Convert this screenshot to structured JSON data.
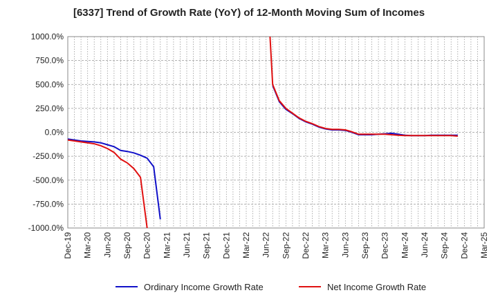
{
  "chart_data": {
    "type": "line",
    "title": "[6337]  Trend of Growth Rate (YoY) of 12-Month Moving Sum of Incomes",
    "xlabel": "",
    "ylabel": "",
    "ylim": [
      -1000,
      1000
    ],
    "y_ticks": [
      "1000.0%",
      "750.0%",
      "500.0%",
      "250.0%",
      "0.0%",
      "-250.0%",
      "-500.0%",
      "-750.0%",
      "-1000.0%"
    ],
    "y_tick_values": [
      1000,
      750,
      500,
      250,
      0,
      -250,
      -500,
      -750,
      -1000
    ],
    "x_ticks": [
      "Dec-19",
      "Mar-20",
      "Jun-20",
      "Sep-20",
      "Dec-20",
      "Mar-21",
      "Jun-21",
      "Sep-21",
      "Dec-21",
      "Mar-22",
      "Jun-22",
      "Sep-22",
      "Dec-22",
      "Mar-23",
      "Jun-23",
      "Sep-23",
      "Dec-23",
      "Mar-24",
      "Jun-24",
      "Sep-24",
      "Dec-24",
      "Mar-25"
    ],
    "grid": true,
    "legend_position": "bottom",
    "series": [
      {
        "name": "Ordinary Income Growth Rate",
        "color": "#1010c8",
        "points": [
          [
            0,
            -70
          ],
          [
            1,
            -80
          ],
          [
            2,
            -90
          ],
          [
            3,
            -95
          ],
          [
            4,
            -100
          ],
          [
            5,
            -110
          ],
          [
            6,
            -130
          ],
          [
            7,
            -150
          ],
          [
            8,
            -190
          ],
          [
            9,
            -200
          ],
          [
            10,
            -215
          ],
          [
            11,
            -240
          ],
          [
            12,
            -270
          ],
          [
            13,
            -360
          ],
          [
            14,
            -910
          ]
        ]
      },
      {
        "name": "Net Income Growth Rate",
        "color": "#e01010",
        "points": [
          [
            0,
            -80
          ],
          [
            1,
            -90
          ],
          [
            2,
            -100
          ],
          [
            3,
            -110
          ],
          [
            4,
            -120
          ],
          [
            5,
            -140
          ],
          [
            6,
            -170
          ],
          [
            7,
            -210
          ],
          [
            8,
            -280
          ],
          [
            9,
            -320
          ],
          [
            10,
            -380
          ],
          [
            11,
            -470
          ],
          [
            12,
            -1000
          ]
        ],
        "points2": [
          [
            30.6,
            1000
          ],
          [
            31,
            500
          ],
          [
            32,
            330
          ],
          [
            33,
            250
          ],
          [
            34,
            200
          ],
          [
            35,
            150
          ],
          [
            36,
            115
          ],
          [
            37,
            90
          ],
          [
            38,
            60
          ],
          [
            39,
            40
          ],
          [
            40,
            30
          ],
          [
            41,
            30
          ],
          [
            42,
            25
          ],
          [
            43,
            5
          ],
          [
            44,
            -20
          ],
          [
            45,
            -20
          ],
          [
            46,
            -20
          ],
          [
            47,
            -20
          ],
          [
            48,
            -20
          ],
          [
            49,
            -25
          ],
          [
            50,
            -30
          ],
          [
            51,
            -35
          ],
          [
            52,
            -35
          ],
          [
            53,
            -35
          ],
          [
            54,
            -35
          ],
          [
            55,
            -35
          ],
          [
            56,
            -35
          ],
          [
            57,
            -35
          ],
          [
            58,
            -35
          ],
          [
            59,
            -40
          ]
        ]
      }
    ],
    "ordinary_segment2": [
      [
        31,
        490
      ],
      [
        32,
        320
      ],
      [
        33,
        240
      ],
      [
        34,
        195
      ],
      [
        35,
        145
      ],
      [
        36,
        110
      ],
      [
        37,
        85
      ],
      [
        38,
        55
      ],
      [
        39,
        35
      ],
      [
        40,
        25
      ],
      [
        41,
        25
      ],
      [
        42,
        20
      ],
      [
        43,
        0
      ],
      [
        44,
        -25
      ],
      [
        45,
        -25
      ],
      [
        46,
        -25
      ],
      [
        47,
        -20
      ],
      [
        48,
        -15
      ],
      [
        49,
        -10
      ],
      [
        50,
        -20
      ],
      [
        51,
        -30
      ],
      [
        52,
        -35
      ],
      [
        53,
        -35
      ],
      [
        54,
        -35
      ],
      [
        55,
        -30
      ],
      [
        56,
        -30
      ],
      [
        57,
        -30
      ],
      [
        58,
        -30
      ],
      [
        59,
        -30
      ]
    ]
  }
}
